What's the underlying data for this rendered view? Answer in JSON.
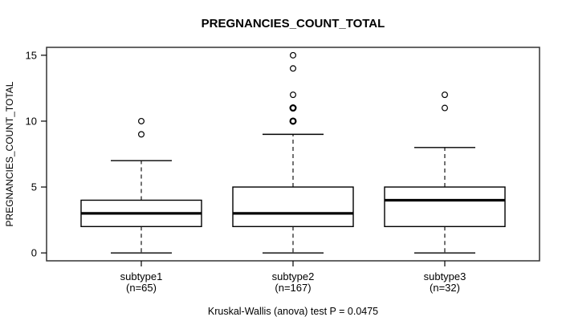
{
  "chart_data": {
    "type": "boxplot",
    "title": "PREGNANCIES_COUNT_TOTAL",
    "ylabel": "PREGNANCIES_COUNT_TOTAL",
    "footer": "Kruskal-Wallis (anova) test P = 0.0475",
    "ylim": [
      0,
      15
    ],
    "yticks": [
      0,
      5,
      10,
      15
    ],
    "grid": false,
    "colors": {
      "stroke": "#000000",
      "frame": "#333333",
      "background": "#ffffff"
    },
    "groups": [
      {
        "label": "subtype1",
        "sublabel": "(n=65)",
        "n": 65,
        "whisker_low": 0,
        "q1": 2,
        "median": 3,
        "q3": 4,
        "whisker_high": 7,
        "outliers": [
          9,
          10
        ],
        "outliers_bold": []
      },
      {
        "label": "subtype2",
        "sublabel": "(n=167)",
        "n": 167,
        "whisker_low": 0,
        "q1": 2,
        "median": 3,
        "q3": 5,
        "whisker_high": 9,
        "outliers": [
          10,
          11,
          12,
          14,
          15
        ],
        "outliers_bold": [
          10,
          11
        ]
      },
      {
        "label": "subtype3",
        "sublabel": "(n=32)",
        "n": 32,
        "whisker_low": 0,
        "q1": 2,
        "median": 4,
        "q3": 5,
        "whisker_high": 8,
        "outliers": [
          11,
          12
        ],
        "outliers_bold": []
      }
    ]
  }
}
